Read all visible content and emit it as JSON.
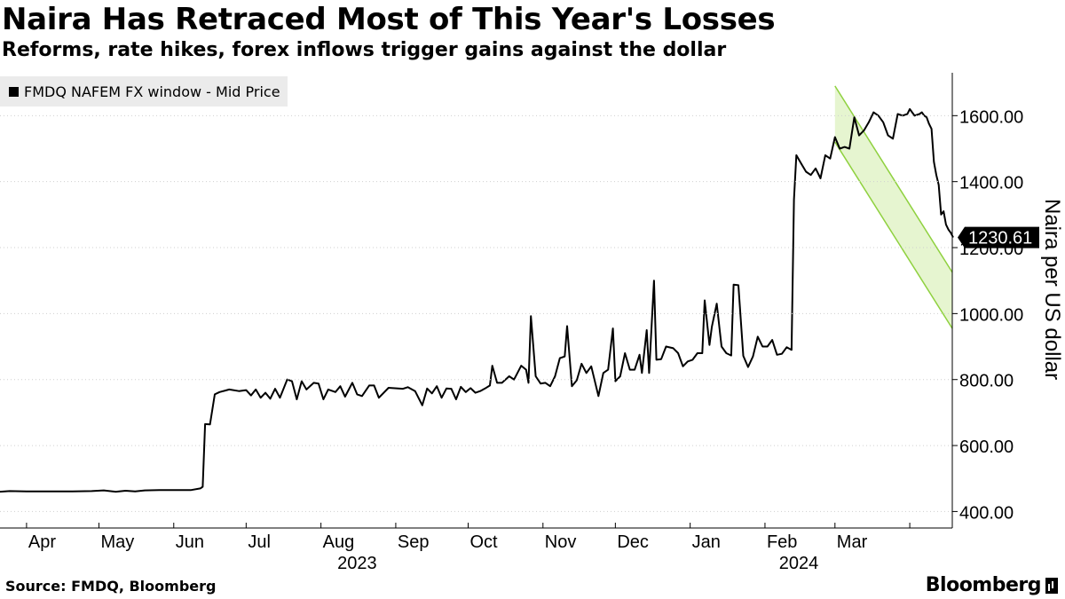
{
  "title": "Naira Has Retraced Most of This Year's Losses",
  "subtitle": "Reforms, rate hikes, forex inflows trigger gains against the dollar",
  "legend_label": "FMDQ NAFEM FX window - Mid Price",
  "source": "Source: FMDQ, Bloomberg",
  "brand": "Bloomberg",
  "chart_data": {
    "type": "line",
    "title": "Naira Has Retraced Most of This Year's Losses",
    "subtitle": "Reforms, rate hikes, forex inflows trigger gains against the dollar",
    "ylabel": "Naira per US dollar",
    "ylim": [
      350,
      1730
    ],
    "y_ticks": [
      "400.00",
      "600.00",
      "800.00",
      "1000.00",
      "1200.00",
      "1400.00",
      "1600.00"
    ],
    "y_tick_values": [
      400,
      600,
      800,
      1000,
      1200,
      1400,
      1600
    ],
    "x_range": [
      "2023-03-21",
      "2024-04-12"
    ],
    "x_ticks": [
      {
        "label": "Apr",
        "date": "2023-04-01"
      },
      {
        "label": "May",
        "date": "2023-05-01"
      },
      {
        "label": "Jun",
        "date": "2023-06-01"
      },
      {
        "label": "Jul",
        "date": "2023-07-01"
      },
      {
        "label": "Aug",
        "date": "2023-08-01"
      },
      {
        "label": "Sep",
        "date": "2023-09-01"
      },
      {
        "label": "Oct",
        "date": "2023-10-01"
      },
      {
        "label": "Nov",
        "date": "2023-11-01"
      },
      {
        "label": "Dec",
        "date": "2023-12-01"
      },
      {
        "label": "Jan",
        "date": "2024-01-01"
      },
      {
        "label": "Feb",
        "date": "2024-02-01"
      },
      {
        "label": "Mar",
        "date": "2024-03-01"
      },
      {
        "label": "",
        "date": "2024-04-01"
      }
    ],
    "year_labels": [
      {
        "label": "2023",
        "date": "2023-08-16"
      },
      {
        "label": "2024",
        "date": "2024-02-15"
      }
    ],
    "last_value_label": "1230.61",
    "trend_channel": {
      "color": "#8fd13f",
      "fill": "#e6f5d0",
      "start_date": "2024-03-01",
      "end_date": "2024-04-12",
      "upper": [
        1690,
        1125
      ],
      "lower": [
        1520,
        955
      ]
    },
    "series": [
      {
        "name": "FMDQ NAFEM FX window - Mid Price",
        "color": "#000000",
        "points": [
          [
            "2023-03-21",
            460
          ],
          [
            "2023-03-25",
            462
          ],
          [
            "2023-04-01",
            461
          ],
          [
            "2023-04-10",
            461
          ],
          [
            "2023-04-20",
            461
          ],
          [
            "2023-04-28",
            462
          ],
          [
            "2023-05-03",
            464
          ],
          [
            "2023-05-08",
            460
          ],
          [
            "2023-05-12",
            463
          ],
          [
            "2023-05-16",
            461
          ],
          [
            "2023-05-20",
            464
          ],
          [
            "2023-05-26",
            465
          ],
          [
            "2023-06-02",
            465
          ],
          [
            "2023-06-08",
            465
          ],
          [
            "2023-06-12",
            470
          ],
          [
            "2023-06-13",
            475
          ],
          [
            "2023-06-14",
            665
          ],
          [
            "2023-06-16",
            664
          ],
          [
            "2023-06-18",
            755
          ],
          [
            "2023-06-20",
            762
          ],
          [
            "2023-06-24",
            770
          ],
          [
            "2023-06-28",
            765
          ],
          [
            "2023-07-01",
            768
          ],
          [
            "2023-07-03",
            752
          ],
          [
            "2023-07-05",
            770
          ],
          [
            "2023-07-07",
            745
          ],
          [
            "2023-07-09",
            760
          ],
          [
            "2023-07-11",
            742
          ],
          [
            "2023-07-13",
            772
          ],
          [
            "2023-07-15",
            745
          ],
          [
            "2023-07-18",
            800
          ],
          [
            "2023-07-20",
            795
          ],
          [
            "2023-07-22",
            740
          ],
          [
            "2023-07-24",
            795
          ],
          [
            "2023-07-26",
            770
          ],
          [
            "2023-07-29",
            790
          ],
          [
            "2023-07-31",
            788
          ],
          [
            "2023-08-02",
            740
          ],
          [
            "2023-08-04",
            770
          ],
          [
            "2023-08-07",
            762
          ],
          [
            "2023-08-09",
            780
          ],
          [
            "2023-08-11",
            748
          ],
          [
            "2023-08-14",
            790
          ],
          [
            "2023-08-16",
            755
          ],
          [
            "2023-08-18",
            750
          ],
          [
            "2023-08-21",
            782
          ],
          [
            "2023-08-23",
            782
          ],
          [
            "2023-08-25",
            745
          ],
          [
            "2023-08-29",
            775
          ],
          [
            "2023-09-04",
            772
          ],
          [
            "2023-09-06",
            777
          ],
          [
            "2023-09-09",
            765
          ],
          [
            "2023-09-12",
            722
          ],
          [
            "2023-09-14",
            773
          ],
          [
            "2023-09-16",
            758
          ],
          [
            "2023-09-18",
            780
          ],
          [
            "2023-09-20",
            745
          ],
          [
            "2023-09-22",
            773
          ],
          [
            "2023-09-24",
            772
          ],
          [
            "2023-09-26",
            740
          ],
          [
            "2023-09-28",
            778
          ],
          [
            "2023-09-30",
            762
          ],
          [
            "2023-10-02",
            774
          ],
          [
            "2023-10-04",
            760
          ],
          [
            "2023-10-06",
            765
          ],
          [
            "2023-10-08",
            773
          ],
          [
            "2023-10-10",
            782
          ],
          [
            "2023-10-11",
            842
          ],
          [
            "2023-10-13",
            790
          ],
          [
            "2023-10-15",
            790
          ],
          [
            "2023-10-18",
            810
          ],
          [
            "2023-10-20",
            800
          ],
          [
            "2023-10-23",
            842
          ],
          [
            "2023-10-25",
            830
          ],
          [
            "2023-10-26",
            790
          ],
          [
            "2023-10-27",
            992
          ],
          [
            "2023-10-29",
            810
          ],
          [
            "2023-10-31",
            788
          ],
          [
            "2023-11-02",
            790
          ],
          [
            "2023-11-04",
            780
          ],
          [
            "2023-11-06",
            810
          ],
          [
            "2023-11-08",
            865
          ],
          [
            "2023-11-10",
            870
          ],
          [
            "2023-11-11",
            962
          ],
          [
            "2023-11-13",
            780
          ],
          [
            "2023-11-15",
            798
          ],
          [
            "2023-11-17",
            848
          ],
          [
            "2023-11-19",
            820
          ],
          [
            "2023-11-21",
            840
          ],
          [
            "2023-11-24",
            750
          ],
          [
            "2023-11-26",
            820
          ],
          [
            "2023-11-28",
            830
          ],
          [
            "2023-11-30",
            955
          ],
          [
            "2023-12-01",
            795
          ],
          [
            "2023-12-03",
            810
          ],
          [
            "2023-12-05",
            880
          ],
          [
            "2023-12-07",
            830
          ],
          [
            "2023-12-09",
            830
          ],
          [
            "2023-12-11",
            875
          ],
          [
            "2023-12-12",
            820
          ],
          [
            "2023-12-14",
            950
          ],
          [
            "2023-12-15",
            820
          ],
          [
            "2023-12-17",
            1100
          ],
          [
            "2023-12-18",
            860
          ],
          [
            "2023-12-20",
            862
          ],
          [
            "2023-12-22",
            900
          ],
          [
            "2023-12-25",
            895
          ],
          [
            "2023-12-27",
            880
          ],
          [
            "2023-12-29",
            840
          ],
          [
            "2023-12-31",
            855
          ],
          [
            "2024-01-02",
            860
          ],
          [
            "2024-01-04",
            880
          ],
          [
            "2024-01-06",
            880
          ],
          [
            "2024-01-07",
            1040
          ],
          [
            "2024-01-09",
            905
          ],
          [
            "2024-01-10",
            960
          ],
          [
            "2024-01-12",
            1030
          ],
          [
            "2024-01-14",
            900
          ],
          [
            "2024-01-16",
            880
          ],
          [
            "2024-01-18",
            873
          ],
          [
            "2024-01-19",
            1088
          ],
          [
            "2024-01-21",
            1086
          ],
          [
            "2024-01-23",
            872
          ],
          [
            "2024-01-25",
            838
          ],
          [
            "2024-01-27",
            870
          ],
          [
            "2024-01-29",
            930
          ],
          [
            "2024-01-31",
            900
          ],
          [
            "2024-02-02",
            900
          ],
          [
            "2024-02-04",
            920
          ],
          [
            "2024-02-06",
            875
          ],
          [
            "2024-02-08",
            878
          ],
          [
            "2024-02-10",
            898
          ],
          [
            "2024-02-12",
            890
          ],
          [
            "2024-02-13",
            1345
          ],
          [
            "2024-02-14",
            1480
          ],
          [
            "2024-02-16",
            1455
          ],
          [
            "2024-02-18",
            1430
          ],
          [
            "2024-02-20",
            1420
          ],
          [
            "2024-02-22",
            1440
          ],
          [
            "2024-02-24",
            1410
          ],
          [
            "2024-02-26",
            1480
          ],
          [
            "2024-02-28",
            1470
          ],
          [
            "2024-03-01",
            1535
          ],
          [
            "2024-03-03",
            1500
          ],
          [
            "2024-03-05",
            1505
          ],
          [
            "2024-03-07",
            1500
          ],
          [
            "2024-03-09",
            1595
          ],
          [
            "2024-03-11",
            1540
          ],
          [
            "2024-03-13",
            1555
          ],
          [
            "2024-03-15",
            1580
          ],
          [
            "2024-03-17",
            1610
          ],
          [
            "2024-03-19",
            1600
          ],
          [
            "2024-03-21",
            1580
          ],
          [
            "2024-03-23",
            1540
          ],
          [
            "2024-03-25",
            1530
          ],
          [
            "2024-03-27",
            1605
          ],
          [
            "2024-03-29",
            1600
          ],
          [
            "2024-03-31",
            1605
          ],
          [
            "2024-04-01",
            1620
          ],
          [
            "2024-04-02",
            1610
          ],
          [
            "2024-04-03",
            1600
          ],
          [
            "2024-04-05",
            1605
          ],
          [
            "2024-04-06",
            1610
          ],
          [
            "2024-04-07",
            1600
          ],
          [
            "2024-04-08",
            1595
          ],
          [
            "2024-04-09",
            1575
          ],
          [
            "2024-04-10",
            1560
          ],
          [
            "2024-04-11",
            1460
          ],
          [
            "2024-04-12",
            1420
          ],
          [
            "2024-04-13",
            1390
          ],
          [
            "2024-04-14",
            1300
          ],
          [
            "2024-04-15",
            1310
          ],
          [
            "2024-04-16",
            1270
          ],
          [
            "2024-04-17",
            1255
          ],
          [
            "2024-04-18",
            1245
          ],
          [
            "2024-04-19",
            1230.61
          ]
        ]
      }
    ]
  }
}
